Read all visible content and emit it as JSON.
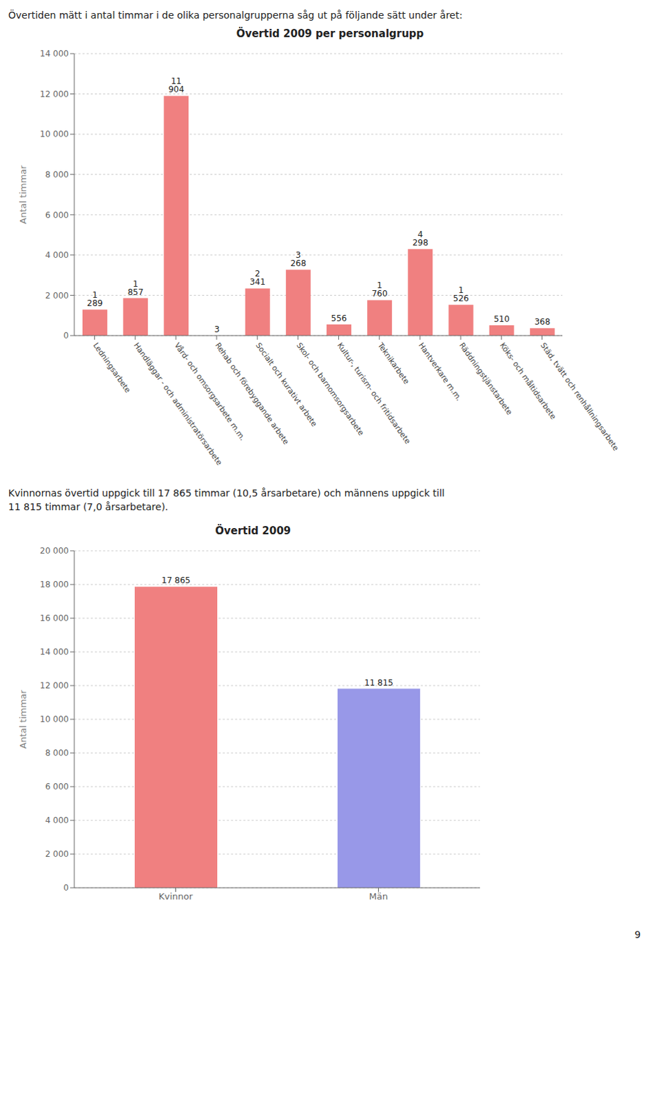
{
  "chart_data": [
    {
      "type": "bar",
      "title": "Övertid 2009 per personalgrupp",
      "y_label": "Antal timmar",
      "annotations": [
        "Övertiden mätt i antal timmar i de olika personalgrupperna såg ut på följande sätt under året:"
      ],
      "categories": [
        "Ledningsarbete",
        "Handläggar - och administratörsarbete",
        "Vård- och omsorgsarbete m.m.",
        "Rehab och förebyggande arbete",
        "Socialt och kurativt arbete",
        "Skol- och barnomsorgsarbete",
        "Kultur-, turism- och fritidsarbete",
        "Teknikarbete",
        "Hantverkare m.m.",
        "Räddningstjänstarbete",
        "Köks- och måltidsarbete",
        "Städ, tvätt och renhållningsarbete"
      ],
      "values": [
        1289,
        1857,
        11904,
        3,
        2341,
        3268,
        556,
        1760,
        4298,
        1526,
        510,
        368
      ],
      "value_labels": [
        "1 289",
        "1 857",
        "11 904",
        "3",
        "2 341",
        "3 268",
        "556",
        "1 760",
        "4 298",
        "1 526",
        "510",
        "368"
      ],
      "data_labels": true,
      "color": "#F08080",
      "ylim": [
        0,
        14000
      ],
      "yticks": [
        0,
        {
          "value": 2000,
          "label": "2 000"
        },
        {
          "value": 4000,
          "label": "4 000"
        },
        {
          "value": 6000,
          "label": "6 000"
        },
        {
          "value": 8000,
          "label": "8 000"
        },
        {
          "value": 10000,
          "label": "10 000"
        },
        {
          "value": 12000,
          "label": "12 000"
        },
        {
          "value": 14000,
          "label": "14 000"
        }
      ],
      "grid": true
    },
    {
      "type": "bar",
      "title": "Övertid 2009",
      "y_label": "Antal timmar",
      "annotations": [
        "Kvinnornas övertid uppgick till 17 865 timmar (10,5 årsarbetare) och männens uppgick till",
        "11 815 timmar (7,0 årsarbetare).",
        "9"
      ],
      "categories": [
        "Kvinnor",
        "Män"
      ],
      "values": [
        17865,
        11815
      ],
      "value_labels": [
        "17 865",
        "11 815"
      ],
      "data_labels": true,
      "colors": [
        "#F08080",
        "#9898E8"
      ],
      "ylim": [
        0,
        20000
      ],
      "yticks": [
        0,
        {
          "value": 2000,
          "label": "2 000"
        },
        {
          "value": 4000,
          "label": "4 000"
        },
        {
          "value": 6000,
          "label": "6 000"
        },
        {
          "value": 8000,
          "label": "8 000"
        },
        {
          "value": 10000,
          "label": "10 000"
        },
        {
          "value": 12000,
          "label": "12 000"
        },
        {
          "value": 14000,
          "label": "14 000"
        },
        {
          "value": 16000,
          "label": "16 000"
        },
        {
          "value": 18000,
          "label": "18 000"
        },
        {
          "value": 20000,
          "label": "20 000"
        }
      ],
      "grid": true
    }
  ]
}
